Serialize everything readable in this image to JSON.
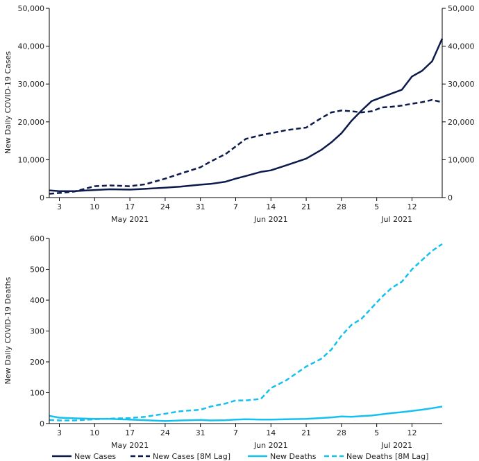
{
  "chart_data": [
    {
      "type": "line",
      "ylabel": "New Daily COVID-19 Cases",
      "ylim": [
        0,
        50000
      ],
      "yticks": [
        0,
        10000,
        20000,
        30000,
        40000,
        50000
      ],
      "ytick_labels": [
        "0",
        "10,000",
        "20,000",
        "30,000",
        "40,000",
        "50,000"
      ],
      "secondary_ytick_labels": [
        "0",
        "10,000",
        "20,000",
        "30,000",
        "40,000",
        "50,000"
      ],
      "x_day_ticks": [
        "3",
        "10",
        "17",
        "24",
        "31",
        "7",
        "14",
        "21",
        "28",
        "5",
        "12"
      ],
      "x_month_labels": [
        "May 2021",
        "Jun 2021",
        "Jul 2021"
      ],
      "grid": false,
      "series": [
        {
          "name": "New Cases",
          "color": "#0b1a4a",
          "dash": "solid",
          "x": [
            "2021-05-01",
            "2021-05-03",
            "2021-05-06",
            "2021-05-10",
            "2021-05-13",
            "2021-05-17",
            "2021-05-20",
            "2021-05-24",
            "2021-05-27",
            "2021-05-31",
            "2021-06-02",
            "2021-06-05",
            "2021-06-07",
            "2021-06-09",
            "2021-06-12",
            "2021-06-14",
            "2021-06-17",
            "2021-06-21",
            "2021-06-24",
            "2021-06-26",
            "2021-06-28",
            "2021-06-30",
            "2021-07-02",
            "2021-07-04",
            "2021-07-06",
            "2021-07-08",
            "2021-07-10",
            "2021-07-12",
            "2021-07-14",
            "2021-07-16",
            "2021-07-18"
          ],
          "values": [
            1900,
            1700,
            1700,
            2000,
            2200,
            2100,
            2300,
            2600,
            2900,
            3400,
            3600,
            4200,
            5000,
            5700,
            6800,
            7200,
            8500,
            10300,
            12600,
            14600,
            17000,
            20300,
            23000,
            25500,
            26500,
            27500,
            28500,
            32000,
            33500,
            36000,
            42000
          ]
        },
        {
          "name": "New Cases [8M Lag]",
          "color": "#0b1a4a",
          "dash": "dashed",
          "x": [
            "2021-05-01",
            "2021-05-03",
            "2021-05-06",
            "2021-05-10",
            "2021-05-13",
            "2021-05-17",
            "2021-05-20",
            "2021-05-24",
            "2021-05-27",
            "2021-05-31",
            "2021-06-02",
            "2021-06-05",
            "2021-06-07",
            "2021-06-09",
            "2021-06-12",
            "2021-06-14",
            "2021-06-17",
            "2021-06-21",
            "2021-06-24",
            "2021-06-26",
            "2021-06-28",
            "2021-06-30",
            "2021-07-02",
            "2021-07-04",
            "2021-07-06",
            "2021-07-08",
            "2021-07-10",
            "2021-07-12",
            "2021-07-14",
            "2021-07-16",
            "2021-07-18"
          ],
          "values": [
            1000,
            1200,
            1600,
            3000,
            3200,
            3000,
            3500,
            5000,
            6300,
            8000,
            9500,
            11500,
            13500,
            15500,
            16500,
            17000,
            17800,
            18500,
            21000,
            22500,
            23000,
            22800,
            22500,
            22800,
            23800,
            24000,
            24300,
            24800,
            25200,
            25800,
            25200
          ]
        }
      ]
    },
    {
      "type": "line",
      "ylabel": "New Daily COVID-19 Deaths",
      "ylim": [
        0,
        600
      ],
      "yticks": [
        0,
        100,
        200,
        300,
        400,
        500,
        600
      ],
      "ytick_labels": [
        "0",
        "100",
        "200",
        "300",
        "400",
        "500",
        "600"
      ],
      "x_day_ticks": [
        "3",
        "10",
        "17",
        "24",
        "31",
        "7",
        "14",
        "21",
        "28",
        "5",
        "12"
      ],
      "x_month_labels": [
        "May 2021",
        "Jun 2021",
        "Jul 2021"
      ],
      "grid": false,
      "series": [
        {
          "name": "New Deaths",
          "color": "#14c0ef",
          "dash": "solid",
          "x": [
            "2021-05-01",
            "2021-05-03",
            "2021-05-06",
            "2021-05-10",
            "2021-05-13",
            "2021-05-17",
            "2021-05-20",
            "2021-05-24",
            "2021-05-27",
            "2021-05-31",
            "2021-06-02",
            "2021-06-05",
            "2021-06-07",
            "2021-06-09",
            "2021-06-12",
            "2021-06-14",
            "2021-06-17",
            "2021-06-21",
            "2021-06-24",
            "2021-06-26",
            "2021-06-28",
            "2021-06-30",
            "2021-07-02",
            "2021-07-04",
            "2021-07-06",
            "2021-07-08",
            "2021-07-10",
            "2021-07-12",
            "2021-07-14",
            "2021-07-16",
            "2021-07-18"
          ],
          "values": [
            25,
            19,
            17,
            15,
            15,
            13,
            11,
            8,
            10,
            12,
            10,
            11,
            13,
            14,
            13,
            13,
            14,
            15,
            18,
            20,
            23,
            22,
            24,
            26,
            30,
            34,
            37,
            41,
            45,
            50,
            55
          ]
        },
        {
          "name": "New Deaths [8M Lag]",
          "color": "#14c0ef",
          "dash": "dashed",
          "x": [
            "2021-05-01",
            "2021-05-03",
            "2021-05-06",
            "2021-05-10",
            "2021-05-13",
            "2021-05-17",
            "2021-05-20",
            "2021-05-24",
            "2021-05-27",
            "2021-05-31",
            "2021-06-02",
            "2021-06-05",
            "2021-06-07",
            "2021-06-09",
            "2021-06-12",
            "2021-06-14",
            "2021-06-17",
            "2021-06-21",
            "2021-06-24",
            "2021-06-26",
            "2021-06-28",
            "2021-06-30",
            "2021-07-02",
            "2021-07-04",
            "2021-07-06",
            "2021-07-08",
            "2021-07-10",
            "2021-07-12",
            "2021-07-14",
            "2021-07-16",
            "2021-07-18"
          ],
          "values": [
            12,
            10,
            10,
            14,
            16,
            18,
            22,
            32,
            40,
            45,
            55,
            65,
            75,
            75,
            80,
            115,
            140,
            185,
            210,
            240,
            285,
            320,
            340,
            375,
            410,
            440,
            460,
            500,
            530,
            560,
            582
          ]
        }
      ]
    }
  ]
}
